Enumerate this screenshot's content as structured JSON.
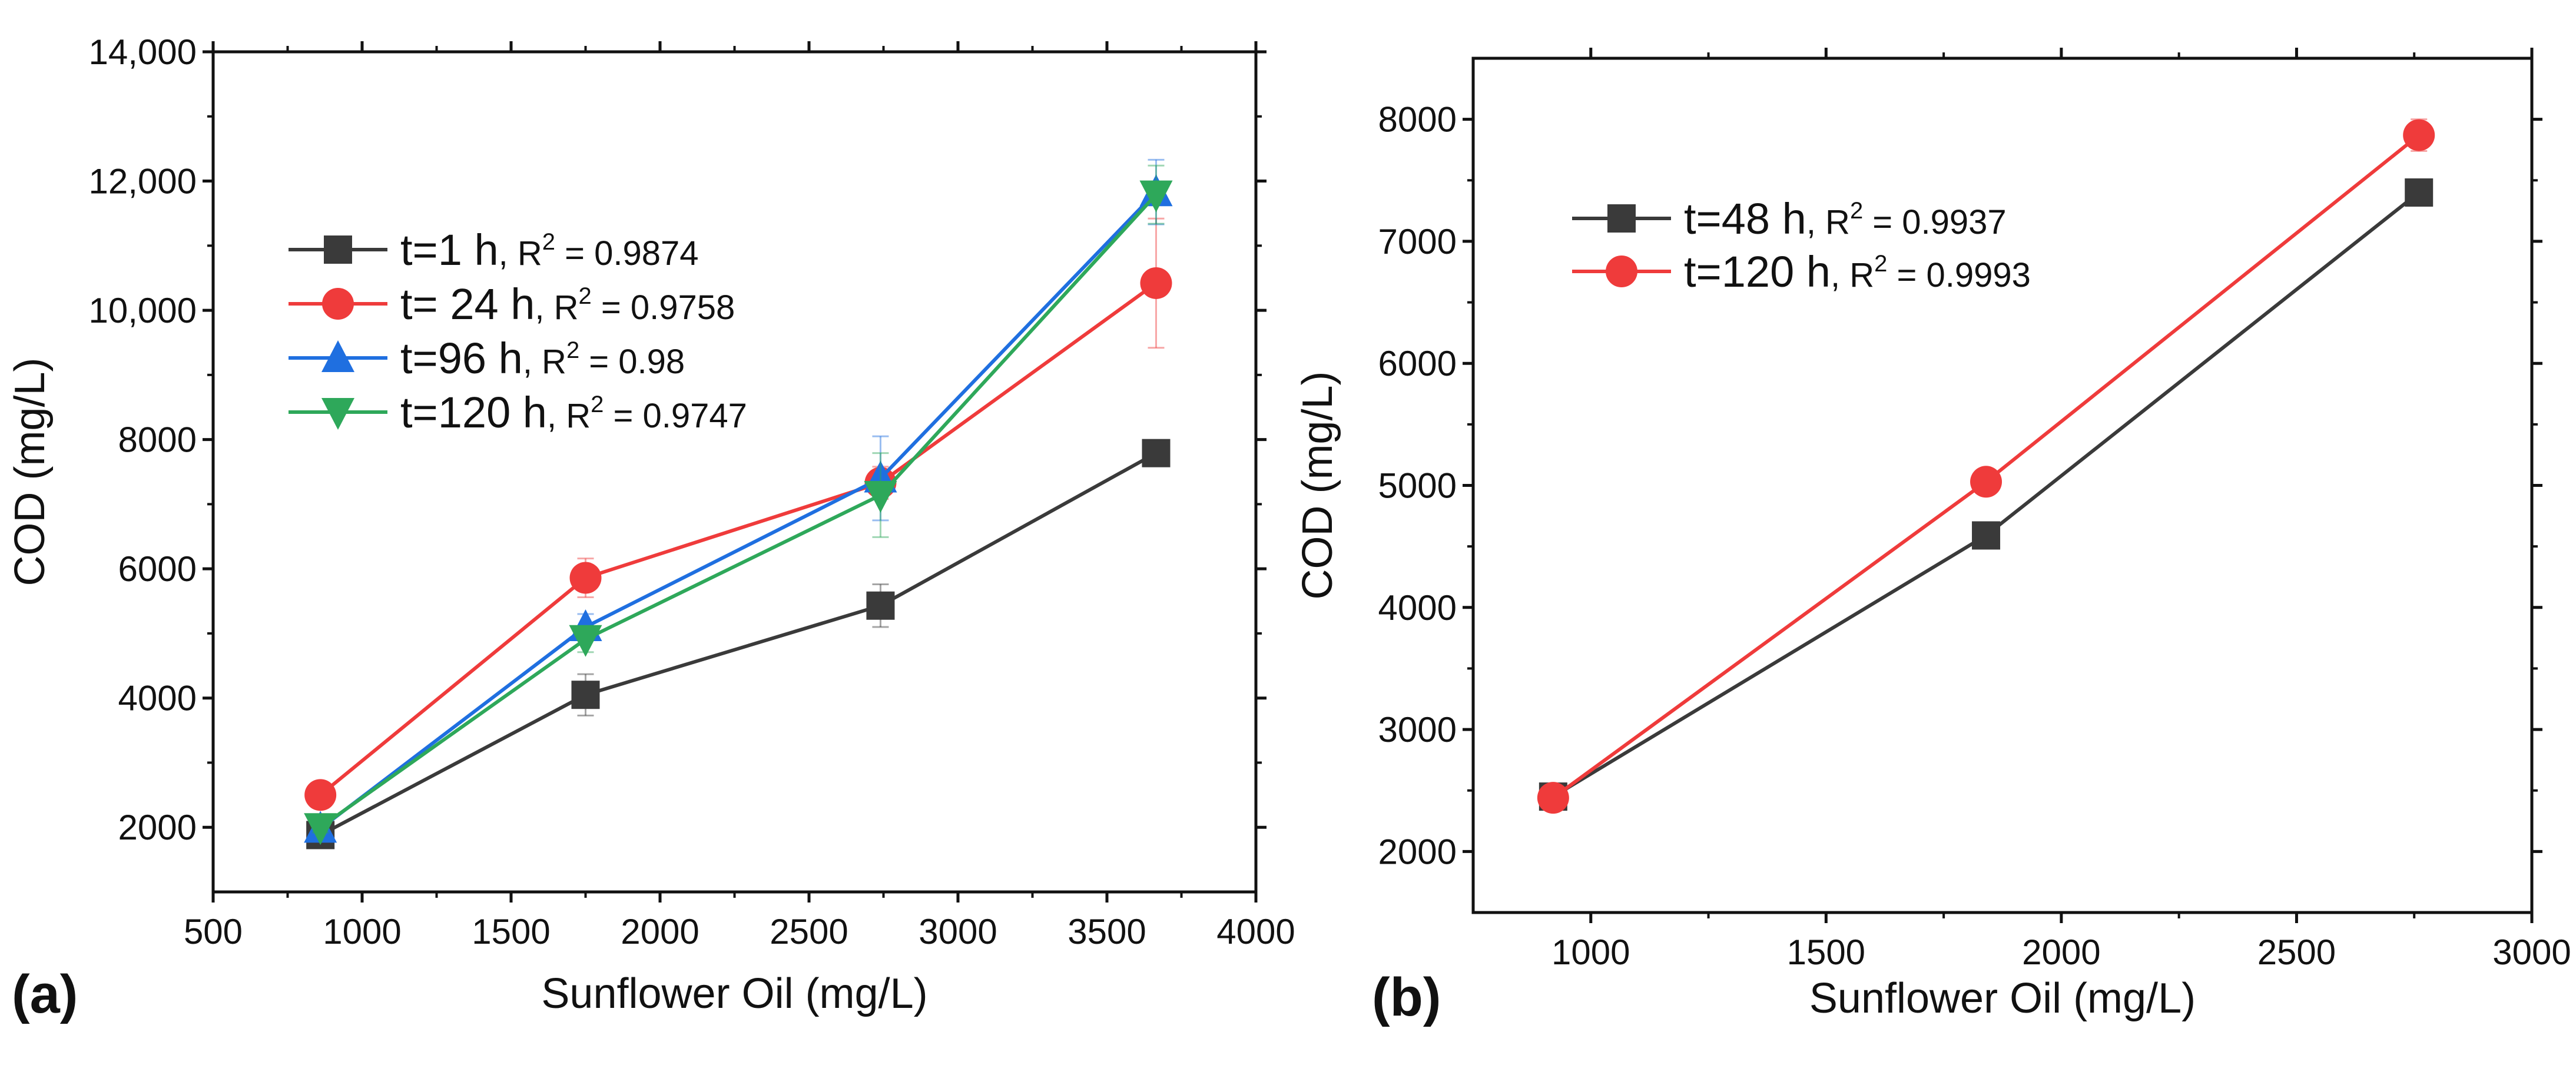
{
  "chart_data": [
    {
      "panel_label": "(a)",
      "type": "line",
      "xlabel": "Sunflower Oil (mg/L)",
      "ylabel": "COD (mg/L)",
      "xlim": [
        500,
        4000
      ],
      "ylim": [
        1000,
        14000
      ],
      "xticks": [
        500,
        1000,
        1500,
        2000,
        2500,
        3000,
        3500,
        4000
      ],
      "xtick_labels": [
        "500",
        "1000",
        "1500",
        "2000",
        "2500",
        "3000",
        "3500",
        "4000"
      ],
      "yticks": [
        2000,
        4000,
        6000,
        8000,
        10000,
        12000,
        14000
      ],
      "ytick_labels": [
        "2000",
        "4000",
        "6000",
        "8000",
        "10,000",
        "12,000",
        "14,000"
      ],
      "grid": false,
      "legend_position": "upper-left",
      "x": [
        860,
        1750,
        2740,
        3665
      ],
      "series": [
        {
          "name": "t=1 h",
          "r2_label": ", R",
          "r2_sup": "2",
          "r2_value": " = 0.9874",
          "color": "#3a3a3a",
          "marker": "square",
          "values": [
            1880,
            4050,
            5430,
            7790
          ],
          "errors": [
            100,
            320,
            330,
            160
          ]
        },
        {
          "name": "t= 24 h",
          "r2_label": ", R",
          "r2_sup": "2",
          "r2_value": " = 0.9758",
          "color": "#ef3b3b",
          "marker": "circle",
          "values": [
            2500,
            5860,
            7330,
            10420
          ],
          "errors": [
            80,
            300,
            250,
            1000
          ]
        },
        {
          "name": "t=96 h",
          "r2_label": ", R",
          "r2_sup": "2",
          "r2_value": " = 0.98",
          "color": "#1f6fe0",
          "marker": "triangle-up",
          "values": [
            1980,
            5100,
            7400,
            11830
          ],
          "errors": [
            80,
            200,
            650,
            500
          ]
        },
        {
          "name": "t=120 h",
          "r2_label": ", R",
          "r2_sup": "2",
          "r2_value": " = 0.9747",
          "color": "#2ea85a",
          "marker": "triangle-down",
          "values": [
            2000,
            4910,
            7140,
            11790
          ],
          "errors": [
            80,
            200,
            650,
            450
          ]
        }
      ]
    },
    {
      "panel_label": "(b)",
      "type": "line",
      "xlabel": "Sunflower Oil (mg/L)",
      "ylabel": "COD (mg/L)",
      "xlim": [
        750,
        3000
      ],
      "ylim": [
        1500,
        8500
      ],
      "xticks": [
        1000,
        1500,
        2000,
        2500,
        3000
      ],
      "xtick_labels": [
        "1000",
        "1500",
        "2000",
        "2500",
        "3000"
      ],
      "yticks": [
        2000,
        3000,
        4000,
        5000,
        6000,
        7000,
        8000
      ],
      "ytick_labels": [
        "2000",
        "3000",
        "4000",
        "5000",
        "6000",
        "7000",
        "8000"
      ],
      "grid": false,
      "legend_position": "upper-left",
      "x": [
        920,
        1840,
        2760
      ],
      "series": [
        {
          "name": "t=48 h",
          "r2_label": ", R",
          "r2_sup": "2",
          "r2_value": " = 0.9937",
          "color": "#3a3a3a",
          "marker": "square",
          "values": [
            2450,
            4590,
            7400
          ],
          "errors": [
            80,
            80,
            90
          ]
        },
        {
          "name": "t=120 h",
          "r2_label": ", R",
          "r2_sup": "2",
          "r2_value": " = 0.9993",
          "color": "#ef3b3b",
          "marker": "circle",
          "values": [
            2440,
            5030,
            7870
          ],
          "errors": [
            60,
            50,
            130
          ]
        }
      ]
    }
  ]
}
